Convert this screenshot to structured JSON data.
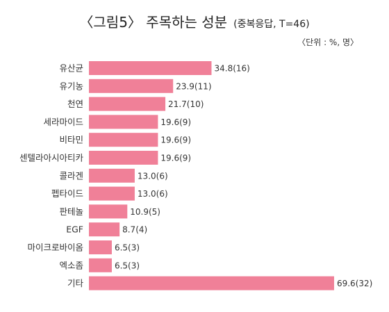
{
  "chart_data": {
    "type": "bar",
    "orientation": "horizontal",
    "title": "〈그림5〉 주목하는 성분",
    "subtitle": "(중복응답, T=46)",
    "unit_note": "〈단위 : %, 명〉",
    "categories": [
      "유산균",
      "유기농",
      "천연",
      "세라마이드",
      "비타민",
      "센텔라아시아티카",
      "콜라겐",
      "펩타이드",
      "판테놀",
      "EGF",
      "마이크로바이옴",
      "엑소좀",
      "기타"
    ],
    "values": [
      34.8,
      23.9,
      21.7,
      19.6,
      19.6,
      19.6,
      13.0,
      13.0,
      10.9,
      8.7,
      6.5,
      6.5,
      69.6
    ],
    "counts": [
      16,
      11,
      10,
      9,
      9,
      9,
      6,
      6,
      5,
      4,
      3,
      3,
      32
    ],
    "value_labels": [
      "34.8(16)",
      "23.9(11)",
      "21.7(10)",
      "19.6(9)",
      "19.6(9)",
      "19.6(9)",
      "13.0(6)",
      "13.0(6)",
      "10.9(5)",
      "8.7(4)",
      "6.5(3)",
      "6.5(3)",
      "69.6(32)"
    ],
    "xlim": [
      0,
      70
    ],
    "grid": false,
    "legend": "none",
    "bar_color": "#f08098"
  }
}
